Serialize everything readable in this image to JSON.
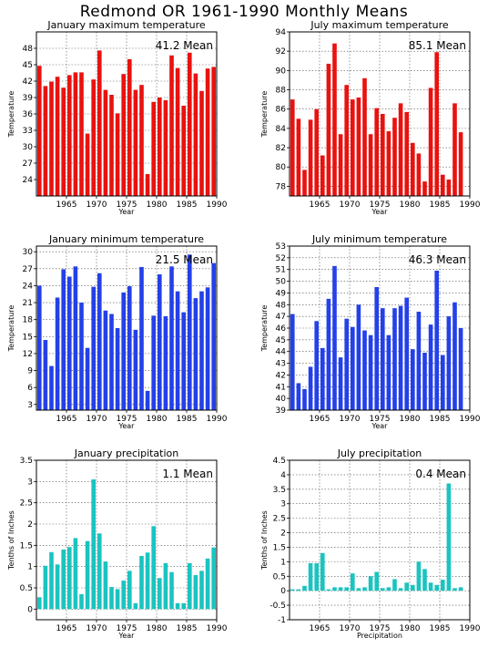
{
  "title": "Redmond OR   1961-1990 Monthly Means",
  "chart_data": [
    {
      "type": "bar",
      "title": "January maximum temperature",
      "ylabel": "Temperature",
      "xlabel": "Year",
      "mean_label": "41.2 Mean",
      "color": "#e8120f",
      "ylim": [
        21,
        51
      ],
      "yticks": [
        "24",
        "27",
        "30",
        "33",
        "36",
        "39",
        "42",
        "45",
        "48"
      ],
      "ytick_values": [
        24,
        27,
        30,
        33,
        36,
        39,
        42,
        45,
        48
      ],
      "xticks": [
        "1965",
        "1970",
        "1975",
        "1980",
        "1985",
        "1990"
      ],
      "xtick_values": [
        1965,
        1970,
        1975,
        1980,
        1985,
        1990
      ],
      "xlim": [
        1961,
        1990
      ],
      "x": [
        1961,
        1962,
        1963,
        1964,
        1965,
        1966,
        1967,
        1968,
        1969,
        1970,
        1971,
        1972,
        1973,
        1974,
        1975,
        1976,
        1977,
        1978,
        1979,
        1980,
        1981,
        1982,
        1983,
        1984,
        1985,
        1986,
        1987,
        1988,
        1989,
        1990
      ],
      "values": [
        44.8,
        41.1,
        41.9,
        42.8,
        40.8,
        43.1,
        43.6,
        43.6,
        32.4,
        42.3,
        47.6,
        40.4,
        39.5,
        36.1,
        43.3,
        46.0,
        40.4,
        41.3,
        25.0,
        38.2,
        39.0,
        38.5,
        46.7,
        44.4,
        37.5,
        47.2,
        43.4,
        40.2,
        44.3,
        44.6
      ]
    },
    {
      "type": "bar",
      "title": "July maximum temperature",
      "ylabel": "Temperature",
      "xlabel": "Year",
      "mean_label": "85.1 Mean",
      "color": "#e8120f",
      "ylim": [
        77,
        94
      ],
      "yticks": [
        "78",
        "80",
        "82",
        "84",
        "86",
        "88",
        "90",
        "92",
        "94"
      ],
      "ytick_values": [
        78,
        80,
        82,
        84,
        86,
        88,
        90,
        92,
        94
      ],
      "xticks": [
        "1965",
        "1970",
        "1975",
        "1980",
        "1985",
        "1990"
      ],
      "xtick_values": [
        1965,
        1970,
        1975,
        1980,
        1985,
        1990
      ],
      "xlim": [
        1961,
        1990
      ],
      "x": [
        1961,
        1962,
        1963,
        1964,
        1965,
        1966,
        1967,
        1968,
        1969,
        1970,
        1971,
        1972,
        1973,
        1974,
        1975,
        1976,
        1977,
        1978,
        1979,
        1980,
        1981,
        1982,
        1983,
        1984,
        1985,
        1986,
        1987,
        1988,
        1989,
        1990
      ],
      "values": [
        87.0,
        85.0,
        79.7,
        84.9,
        86.0,
        81.2,
        90.7,
        92.8,
        83.4,
        88.5,
        87.0,
        87.2,
        89.2,
        83.4,
        86.1,
        85.5,
        83.7,
        85.1,
        86.6,
        85.7,
        82.5,
        81.4,
        78.5,
        88.2,
        91.9,
        79.2,
        78.7,
        86.6,
        83.6,
        null
      ]
    },
    {
      "type": "bar",
      "title": "January minimum temperature",
      "ylabel": "Temperature",
      "xlabel": "Year",
      "mean_label": "21.5 Mean",
      "color": "#2440e8",
      "ylim": [
        2,
        31
      ],
      "yticks": [
        "3",
        "6",
        "9",
        "12",
        "15",
        "18",
        "21",
        "24",
        "27",
        "30"
      ],
      "ytick_values": [
        3,
        6,
        9,
        12,
        15,
        18,
        21,
        24,
        27,
        30
      ],
      "xticks": [
        "1965",
        "1970",
        "1975",
        "1980",
        "1985",
        "1990"
      ],
      "xtick_values": [
        1965,
        1970,
        1975,
        1980,
        1985,
        1990
      ],
      "xlim": [
        1961,
        1990
      ],
      "x": [
        1961,
        1962,
        1963,
        1964,
        1965,
        1966,
        1967,
        1968,
        1969,
        1970,
        1971,
        1972,
        1973,
        1974,
        1975,
        1976,
        1977,
        1978,
        1979,
        1980,
        1981,
        1982,
        1983,
        1984,
        1985,
        1986,
        1987,
        1988,
        1989,
        1990
      ],
      "values": [
        24.0,
        14.4,
        9.8,
        21.9,
        26.9,
        25.6,
        27.4,
        21.0,
        13.0,
        23.8,
        26.2,
        19.6,
        19.0,
        16.5,
        22.8,
        23.9,
        16.2,
        27.3,
        5.4,
        18.7,
        26.0,
        18.6,
        27.4,
        23.0,
        19.3,
        29.5,
        21.8,
        23.0,
        23.7,
        28.0
      ]
    },
    {
      "type": "bar",
      "title": "July minimum temperature",
      "ylabel": "Temperature",
      "xlabel": "Year",
      "mean_label": "46.3 Mean",
      "color": "#2440e8",
      "ylim": [
        39,
        53
      ],
      "yticks": [
        "39",
        "40",
        "41",
        "42",
        "43",
        "44",
        "45",
        "46",
        "47",
        "48",
        "49",
        "50",
        "51",
        "52",
        "53"
      ],
      "ytick_values": [
        39,
        40,
        41,
        42,
        43,
        44,
        45,
        46,
        47,
        48,
        49,
        50,
        51,
        52,
        53
      ],
      "xticks": [
        "1965",
        "1970",
        "1975",
        "1980",
        "1985",
        "1990"
      ],
      "xtick_values": [
        1965,
        1970,
        1975,
        1980,
        1985,
        1990
      ],
      "xlim": [
        1961,
        1990
      ],
      "x": [
        1961,
        1962,
        1963,
        1964,
        1965,
        1966,
        1967,
        1968,
        1969,
        1970,
        1971,
        1972,
        1973,
        1974,
        1975,
        1976,
        1977,
        1978,
        1979,
        1980,
        1981,
        1982,
        1983,
        1984,
        1985,
        1986,
        1987,
        1988,
        1989,
        1990
      ],
      "values": [
        47.2,
        41.3,
        40.8,
        42.7,
        46.6,
        44.3,
        48.5,
        51.3,
        43.5,
        46.8,
        46.1,
        48.0,
        45.8,
        45.4,
        49.5,
        47.7,
        45.4,
        47.7,
        47.9,
        48.6,
        44.2,
        47.4,
        43.9,
        46.3,
        50.9,
        43.7,
        47.0,
        48.2,
        46.0,
        null
      ]
    },
    {
      "type": "bar",
      "title": "January precipitation",
      "ylabel": "Tenths of Inches",
      "xlabel": "Year",
      "mean_label": "1.1  Mean",
      "color": "#1ac4c0",
      "ylim": [
        -0.25,
        3.5
      ],
      "yticks": [
        "0",
        "0.5",
        "1",
        "1.5",
        "2",
        "2.5",
        "3",
        "3.5"
      ],
      "ytick_values": [
        0,
        0.5,
        1,
        1.5,
        2,
        2.5,
        3,
        3.5
      ],
      "xticks": [
        "1965",
        "1970",
        "1975",
        "1980",
        "1985",
        "1990"
      ],
      "xtick_values": [
        1965,
        1970,
        1975,
        1980,
        1985,
        1990
      ],
      "xlim": [
        1961,
        1990
      ],
      "x": [
        1961,
        1962,
        1963,
        1964,
        1965,
        1966,
        1967,
        1968,
        1969,
        1970,
        1971,
        1972,
        1973,
        1974,
        1975,
        1976,
        1977,
        1978,
        1979,
        1980,
        1981,
        1982,
        1983,
        1984,
        1985,
        1986,
        1987,
        1988,
        1989,
        1990
      ],
      "values": [
        0.28,
        1.02,
        1.34,
        1.05,
        1.4,
        1.46,
        1.67,
        0.35,
        1.6,
        3.05,
        1.78,
        1.12,
        0.52,
        0.47,
        0.67,
        0.9,
        0.14,
        1.25,
        1.33,
        1.95,
        0.73,
        1.08,
        0.87,
        0.14,
        0.14,
        1.08,
        0.8,
        0.9,
        1.19,
        1.45
      ]
    },
    {
      "type": "bar",
      "title": "July precipitation",
      "ylabel": "Tenths of Inches",
      "xlabel": "Precipitation",
      "mean_label": "0.4  Mean",
      "color": "#1ac4c0",
      "ylim": [
        -1,
        4.5
      ],
      "yticks": [
        "-1",
        "-0.5",
        "0",
        "0.5",
        "1",
        "1.5",
        "2",
        "2.5",
        "3",
        "3.5",
        "4",
        "4.5"
      ],
      "ytick_values": [
        -1,
        -0.5,
        0,
        0.5,
        1,
        1.5,
        2,
        2.5,
        3,
        3.5,
        4,
        4.5
      ],
      "xticks": [
        "1965",
        "1970",
        "1975",
        "1980",
        "1985",
        "1990"
      ],
      "xtick_values": [
        1965,
        1970,
        1975,
        1980,
        1985,
        1990
      ],
      "xlim": [
        1961,
        1990
      ],
      "x": [
        1961,
        1962,
        1963,
        1964,
        1965,
        1966,
        1967,
        1968,
        1969,
        1970,
        1971,
        1972,
        1973,
        1974,
        1975,
        1976,
        1977,
        1978,
        1979,
        1980,
        1981,
        1982,
        1983,
        1984,
        1985,
        1986,
        1987,
        1988,
        1989,
        1990
      ],
      "values": [
        0.05,
        0.05,
        0.17,
        0.95,
        0.95,
        1.3,
        0.05,
        0.12,
        0.12,
        0.12,
        0.6,
        0.09,
        0.12,
        0.5,
        0.65,
        0.09,
        0.12,
        0.4,
        0.09,
        0.28,
        0.2,
        1.0,
        0.75,
        0.28,
        0.2,
        0.38,
        3.7,
        0.09,
        0.12,
        null
      ]
    }
  ]
}
